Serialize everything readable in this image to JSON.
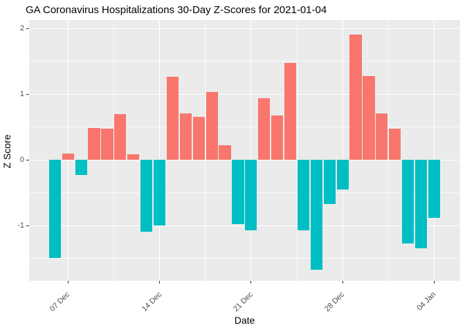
{
  "chart_data": {
    "type": "bar",
    "title": "GA Coronavirus Hospitalizations 30-Day Z-Scores for 2021-01-04",
    "xlabel": "Date",
    "ylabel": "Z Score",
    "categories": [
      "06 Dec",
      "07 Dec",
      "08 Dec",
      "09 Dec",
      "10 Dec",
      "11 Dec",
      "12 Dec",
      "13 Dec",
      "14 Dec",
      "15 Dec",
      "16 Dec",
      "17 Dec",
      "18 Dec",
      "19 Dec",
      "20 Dec",
      "21 Dec",
      "22 Dec",
      "23 Dec",
      "24 Dec",
      "25 Dec",
      "26 Dec",
      "27 Dec",
      "28 Dec",
      "29 Dec",
      "30 Dec",
      "31 Dec",
      "01 Jan",
      "02 Jan",
      "03 Jan",
      "04 Jan"
    ],
    "values": [
      -1.49,
      0.1,
      -0.23,
      0.49,
      0.48,
      0.7,
      0.09,
      -1.09,
      -1.0,
      1.27,
      0.71,
      0.66,
      1.04,
      0.22,
      -0.98,
      -1.07,
      0.94,
      0.68,
      1.48,
      -1.07,
      -1.67,
      -0.67,
      -0.45,
      1.91,
      1.28,
      0.71,
      0.48,
      -1.27,
      -1.34,
      -0.88
    ],
    "ylim": [
      -1.84,
      2.13
    ],
    "y_major_ticks": [
      {
        "value": 2,
        "label": "2"
      },
      {
        "value": 1,
        "label": "1"
      },
      {
        "value": 0,
        "label": "0"
      },
      {
        "value": -1,
        "label": "-1"
      }
    ],
    "y_minor_ticks": [
      1.5,
      0.5,
      -0.5,
      -1.5
    ],
    "x_major_ticks": [
      {
        "index": 1,
        "label": "07 Dec"
      },
      {
        "index": 8,
        "label": "14 Dec"
      },
      {
        "index": 15,
        "label": "21 Dec"
      },
      {
        "index": 22,
        "label": "28 Dec"
      },
      {
        "index": 29,
        "label": "04 Jan"
      }
    ],
    "x_minor_tick_indices": [
      4.5,
      11.5,
      18.5,
      25.5
    ],
    "grid": "on",
    "legend": "none",
    "colors": {
      "positive_bar": "#F8766D",
      "negative_bar": "#00BFC4",
      "panel_background": "#EBEBEB",
      "gridline": "#FFFFFF",
      "tick_label": "#4D4D4D",
      "tick_mark": "#333333",
      "title_text": "#000000"
    }
  }
}
